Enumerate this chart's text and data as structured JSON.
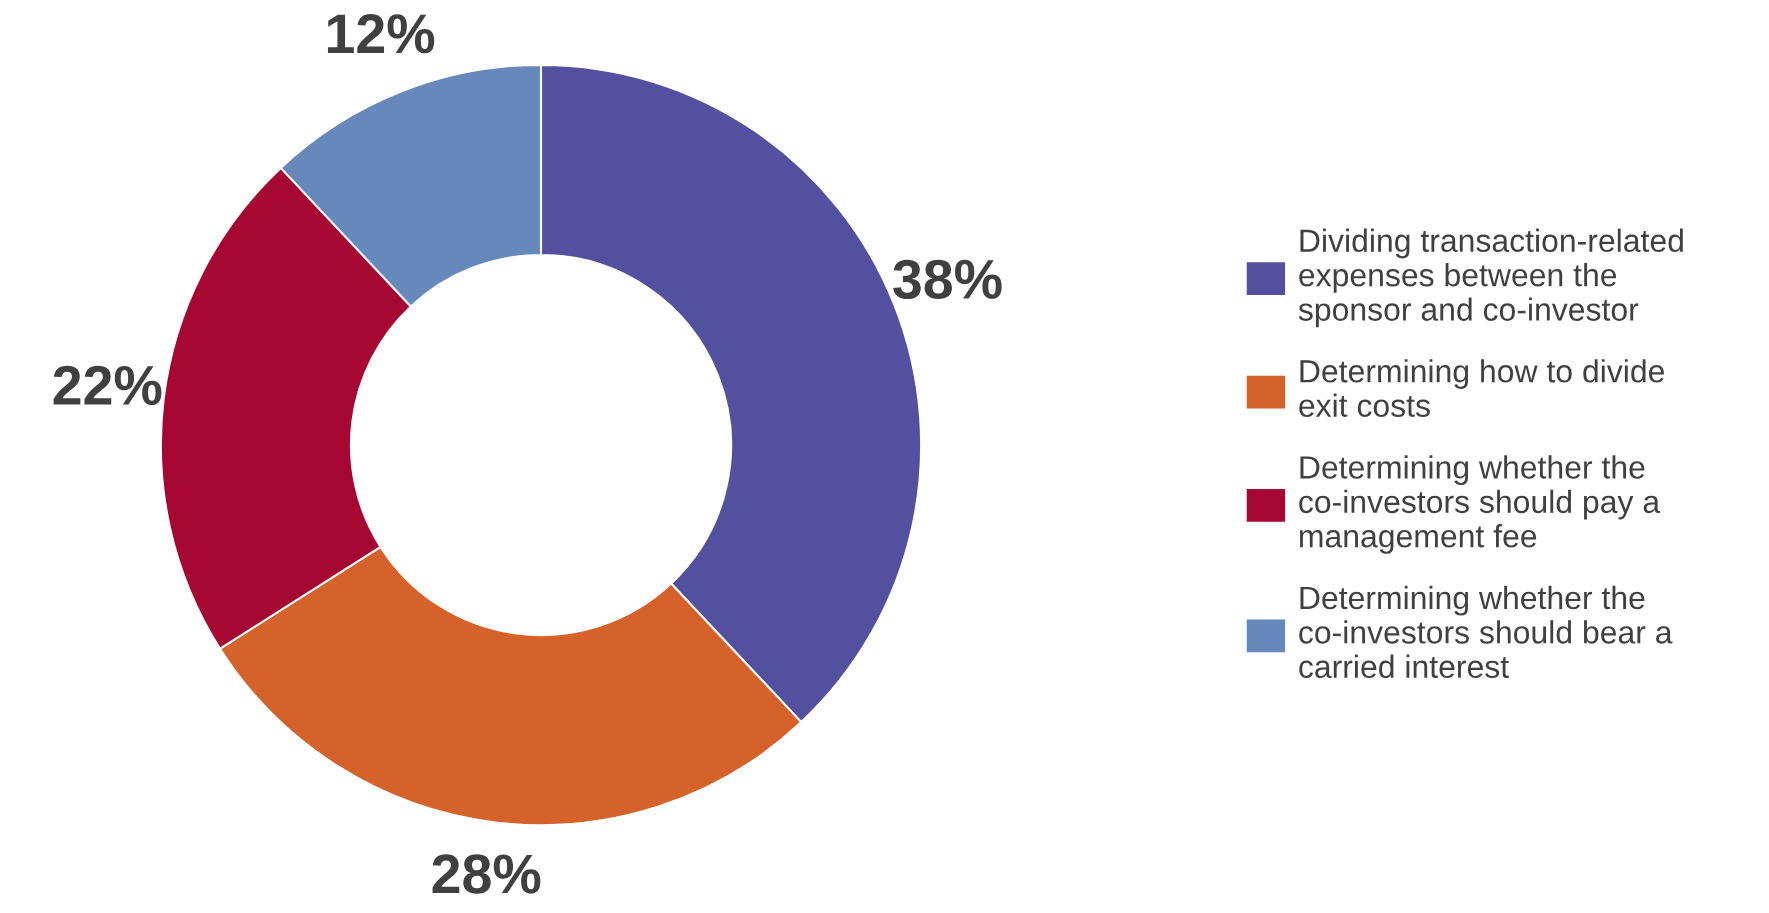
{
  "chart_data": {
    "type": "donut",
    "categories": [
      "Dividing transaction-related\nexpenses between the\nsponsor and co-investor",
      "Determining how to divide\nexit costs",
      "Determining whether the\nco-investors should pay a\nmanagement fee",
      "Determining whether the\nco-investors should bear a\ncarried interest"
    ],
    "values": [
      38,
      28,
      22,
      12
    ],
    "colors": [
      "#5350a0",
      "#d4622a",
      "#a50632",
      "#6688bb"
    ],
    "value_labels": [
      "38%",
      "28%",
      "22%",
      "12%"
    ],
    "legend": "right"
  }
}
